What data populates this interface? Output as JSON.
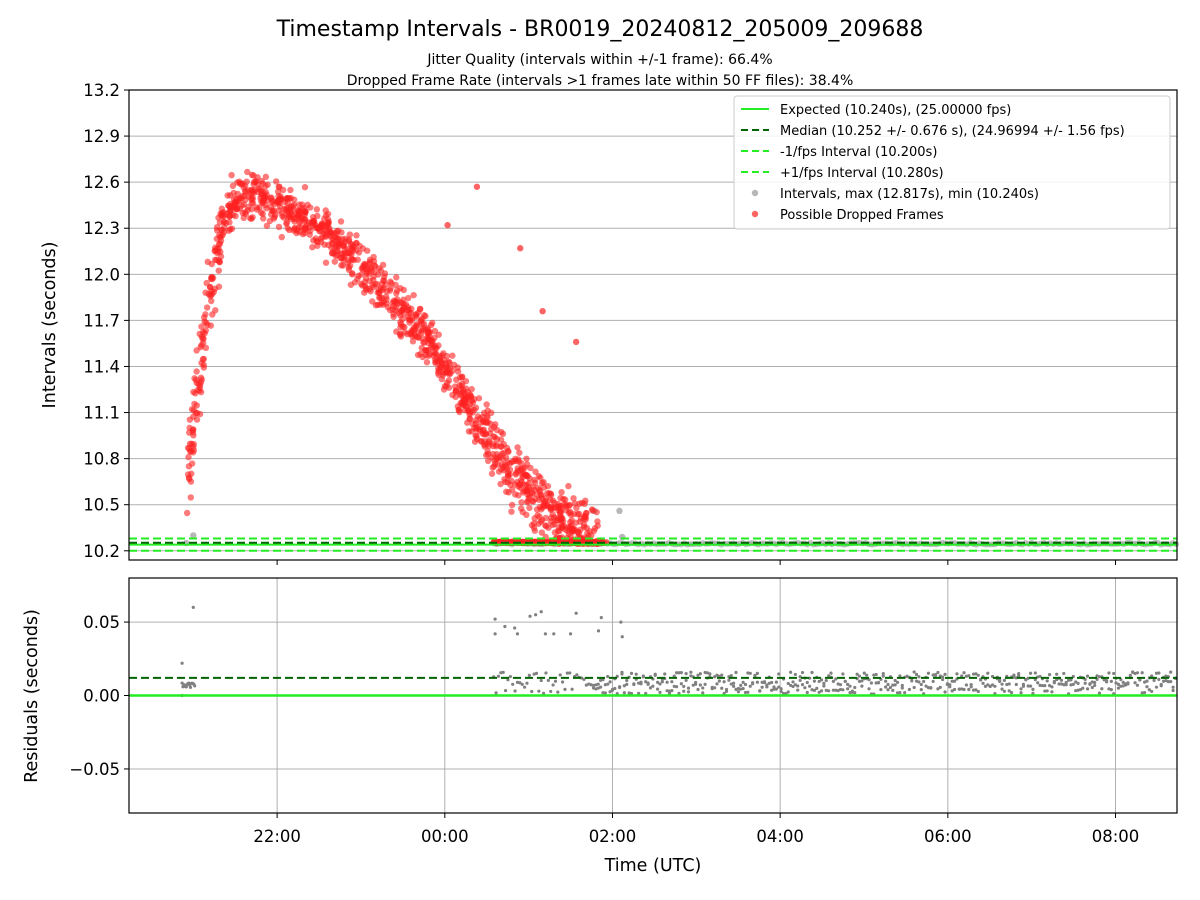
{
  "chart_data": [
    {
      "type": "scatter",
      "title": "Timestamp Intervals - BR0019_20240812_205009_209688",
      "subtitle_lines": [
        "Jitter Quality (intervals within +/-1 frame): 66.4%",
        "Dropped Frame Rate (intervals >1 frames late within 50 FF files): 38.4%"
      ],
      "xlabel": "",
      "ylabel": "Intervals (seconds)",
      "xlim": [
        "20:14",
        "08:44"
      ],
      "ylim": [
        10.14,
        13.2
      ],
      "yticks": [
        10.2,
        10.5,
        10.8,
        11.1,
        11.4,
        11.7,
        12.0,
        12.3,
        12.6,
        12.9,
        13.2
      ],
      "ytick_labels": [
        "10.2",
        "10.5",
        "10.8",
        "11.1",
        "11.4",
        "11.7",
        "12.0",
        "12.3",
        "12.6",
        "12.9",
        "13.2"
      ],
      "xticks": [
        "22:00",
        "00:00",
        "02:00",
        "04:00",
        "06:00",
        "08:00"
      ],
      "grid": true,
      "legend_position": "top-right",
      "legend": [
        {
          "label": "Expected (10.240s), (25.00000 fps)",
          "style": "solid",
          "color": "#22ee22"
        },
        {
          "label": "Median (10.252 +/- 0.676 s), (24.96994 +/- 1.56 fps)",
          "style": "dashed",
          "color": "#006400"
        },
        {
          "label": "-1/fps Interval (10.200s)",
          "style": "dashed",
          "color": "#22ee22"
        },
        {
          "label": "+1/fps Interval (10.280s)",
          "style": "dashed",
          "color": "#22ee22"
        },
        {
          "label": "Intervals, max (12.817s), min (10.240s)",
          "style": "dot",
          "color": "#999999"
        },
        {
          "label": "Possible Dropped Frames",
          "style": "dot",
          "color": "#ff2222"
        }
      ],
      "lines": {
        "expected": 10.24,
        "median": 10.252,
        "minus_fps": 10.2,
        "plus_fps": 10.28
      },
      "dropped_frames_trend": {
        "x": [
          "20:55",
          "21:00",
          "21:05",
          "21:10",
          "21:15",
          "21:20",
          "21:25",
          "21:30",
          "21:40",
          "21:50",
          "22:00",
          "22:15",
          "22:30",
          "22:45",
          "23:00",
          "23:15",
          "23:30",
          "23:45",
          "00:00",
          "00:10",
          "00:20",
          "00:30",
          "00:40",
          "00:50",
          "01:00",
          "01:10",
          "01:20",
          "01:30",
          "01:40",
          "01:50"
        ],
        "y": [
          10.7,
          11.0,
          11.35,
          11.75,
          12.05,
          12.3,
          12.4,
          12.47,
          12.52,
          12.5,
          12.45,
          12.38,
          12.3,
          12.2,
          12.05,
          11.9,
          11.75,
          11.6,
          11.4,
          11.25,
          11.1,
          10.95,
          10.8,
          10.7,
          10.6,
          10.5,
          10.42,
          10.36,
          10.32,
          10.28
        ]
      },
      "dropped_frames_outliers": [
        {
          "x": "00:02",
          "y": 12.32
        },
        {
          "x": "00:23",
          "y": 12.57
        },
        {
          "x": "00:54",
          "y": 12.17
        },
        {
          "x": "01:10",
          "y": 11.76
        },
        {
          "x": "01:34",
          "y": 11.56
        }
      ],
      "intervals_gray": [
        {
          "x": "20:55",
          "y": 10.25
        },
        {
          "x": "21:00",
          "y": 10.3
        },
        {
          "x": "02:05",
          "y": 10.46
        },
        {
          "x": "02:07",
          "y": 10.29
        },
        {
          "x": "01:47",
          "y": 10.46
        }
      ],
      "intervals_baseline": {
        "x_start": "00:35",
        "x_end": "08:44",
        "y": 10.24
      }
    },
    {
      "type": "scatter",
      "xlabel": "Time (UTC)",
      "ylabel": "Residuals (seconds)",
      "ylim": [
        -0.08,
        0.08
      ],
      "yticks": [
        -0.05,
        0.0,
        0.05
      ],
      "ytick_labels": [
        "−0.05",
        "0.00",
        "0.05"
      ],
      "xticks": [
        "22:00",
        "00:00",
        "02:00",
        "04:00",
        "06:00",
        "08:00"
      ],
      "grid": true,
      "lines": {
        "expected": 0.0,
        "median": 0.012
      },
      "early_points": [
        {
          "x": "20:52",
          "y": 0.022
        },
        {
          "x": "20:52",
          "y": 0.0
        },
        {
          "x": "21:00",
          "y": 0.06
        }
      ],
      "early_cluster": {
        "x_start": "20:52",
        "x_end": "21:01",
        "y": 0.007
      },
      "scattered_high": [
        {
          "x": "00:36",
          "y": 0.052
        },
        {
          "x": "00:36",
          "y": 0.042
        },
        {
          "x": "00:43",
          "y": 0.047
        },
        {
          "x": "00:50",
          "y": 0.046
        },
        {
          "x": "00:52",
          "y": 0.042
        },
        {
          "x": "01:01",
          "y": 0.054
        },
        {
          "x": "01:05",
          "y": 0.055
        },
        {
          "x": "01:09",
          "y": 0.057
        },
        {
          "x": "01:12",
          "y": 0.042
        },
        {
          "x": "01:18",
          "y": 0.042
        },
        {
          "x": "01:30",
          "y": 0.042
        },
        {
          "x": "01:34",
          "y": 0.056
        },
        {
          "x": "01:50",
          "y": 0.044
        },
        {
          "x": "01:52",
          "y": 0.053
        },
        {
          "x": "02:06",
          "y": 0.05
        },
        {
          "x": "02:07",
          "y": 0.04
        }
      ],
      "dense_band": {
        "x_start": "00:35",
        "x_end": "08:44",
        "y_min": 0.001,
        "y_max": 0.016
      }
    }
  ]
}
